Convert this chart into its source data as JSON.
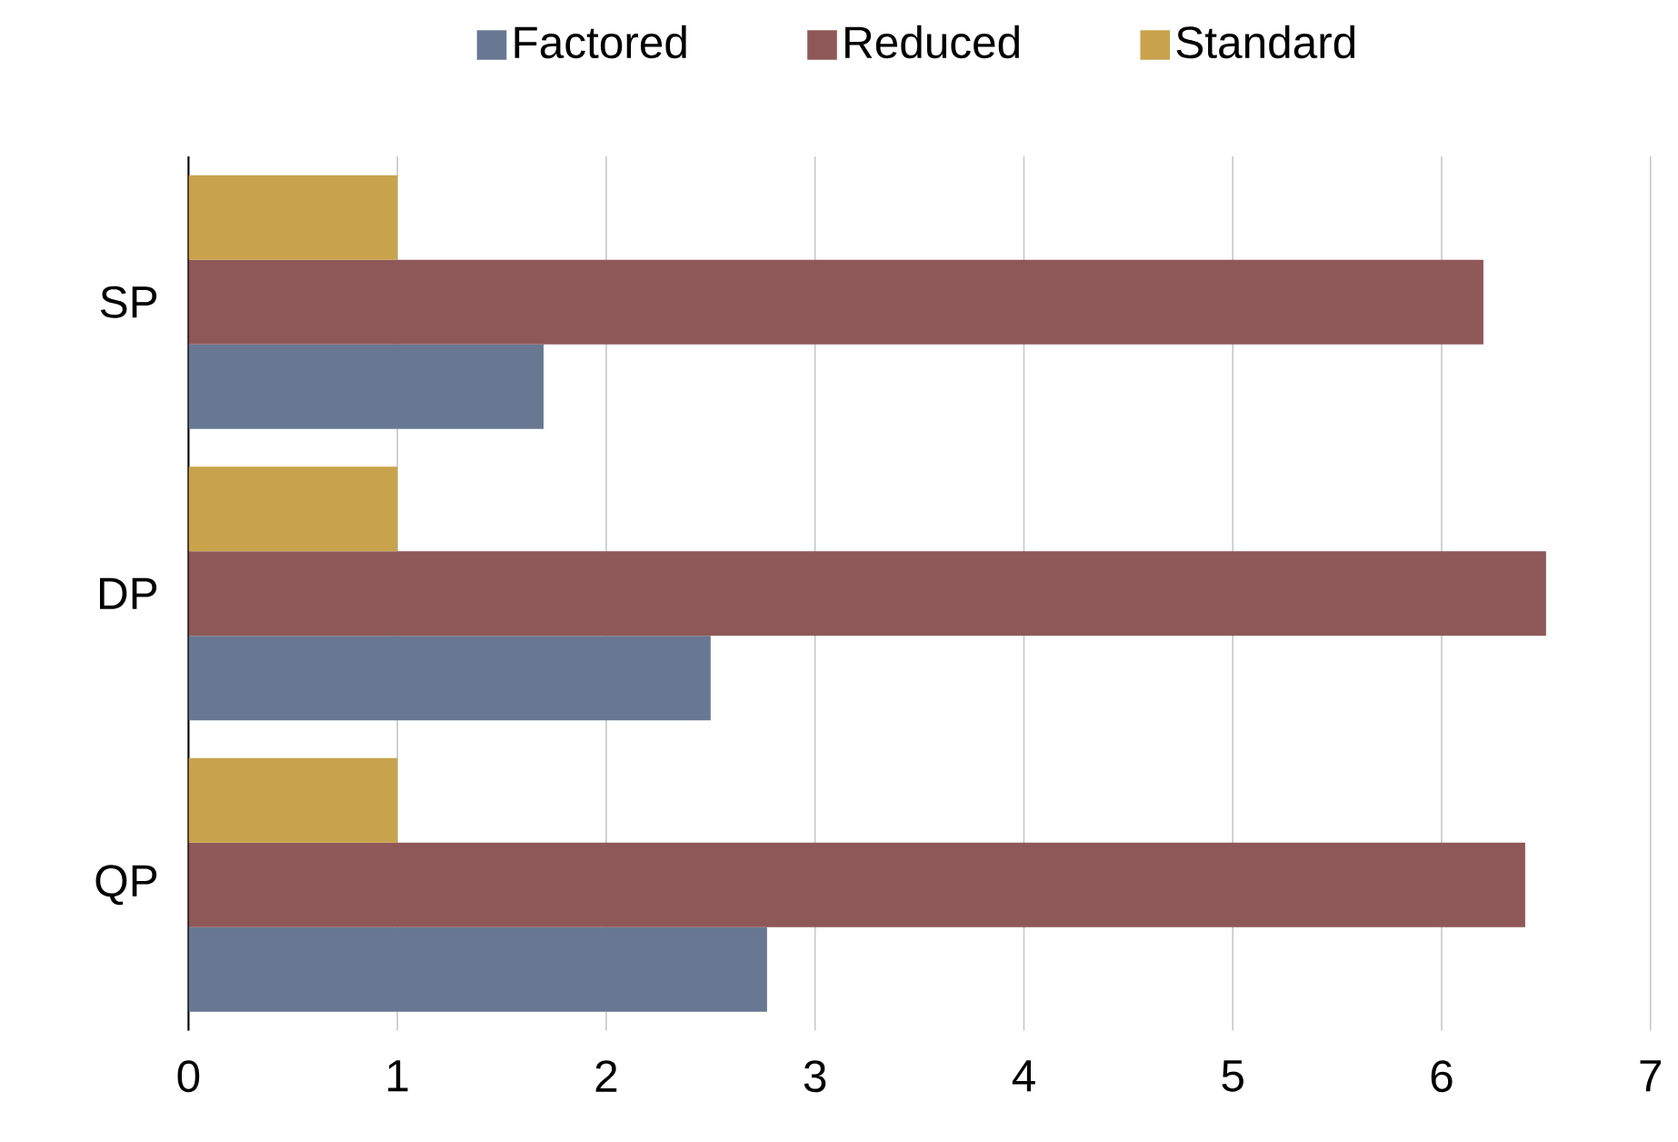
{
  "chart_data": {
    "type": "bar",
    "orientation": "horizontal",
    "categories": [
      "SP",
      "DP",
      "QP"
    ],
    "series": [
      {
        "name": "Factored",
        "color": "#687893",
        "values": [
          1.7,
          2.5,
          2.77
        ]
      },
      {
        "name": "Reduced",
        "color": "#8f5858",
        "values": [
          6.2,
          6.5,
          6.4
        ]
      },
      {
        "name": "Standard",
        "color": "#c9a24c",
        "values": [
          1,
          1,
          1
        ]
      }
    ],
    "xlim": [
      0,
      7
    ],
    "xticks": [
      0,
      1,
      2,
      3,
      4,
      5,
      6,
      7
    ],
    "grid": "x",
    "legend": "top"
  }
}
